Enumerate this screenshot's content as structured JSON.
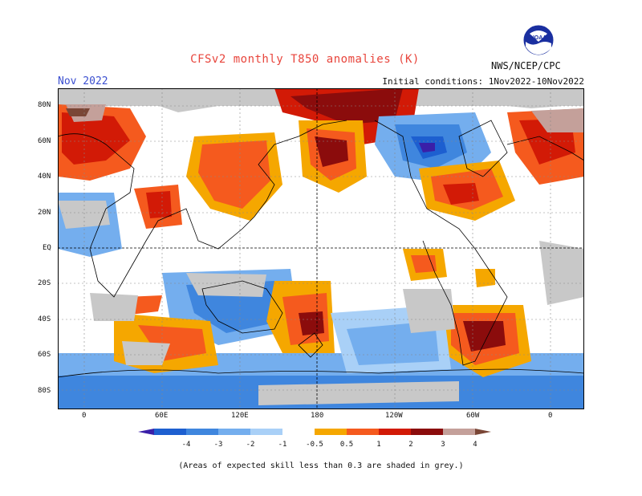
{
  "header": {
    "title": "CFSv2 monthly T850 anomalies (K)",
    "month": "Nov 2022",
    "initial_conditions": "Initial conditions: 1Nov2022-10Nov2022",
    "agency": "NWS/NCEP/CPC",
    "logo_text": "NOAA"
  },
  "map": {
    "lat_labels": [
      "80N",
      "60N",
      "40N",
      "20N",
      "EQ",
      "20S",
      "40S",
      "60S",
      "80S"
    ],
    "lon_labels": [
      "0",
      "60E",
      "120E",
      "180",
      "120W",
      "60W",
      "0"
    ]
  },
  "legend": {
    "ticks": [
      "-4",
      "-3",
      "-2",
      "-1",
      "-0.5",
      "0.5",
      "1",
      "2",
      "3",
      "4"
    ],
    "colors": [
      "#3a1fa8",
      "#1d5fd0",
      "#3f86de",
      "#74aeee",
      "#a9d0f7",
      "#ffffff",
      "#f5a700",
      "#f55a1e",
      "#d21a06",
      "#8b0c0c",
      "#c4a09a",
      "#7a4636"
    ]
  },
  "footnote": "(Areas of expected skill less than 0.3 are shaded in grey.)"
}
